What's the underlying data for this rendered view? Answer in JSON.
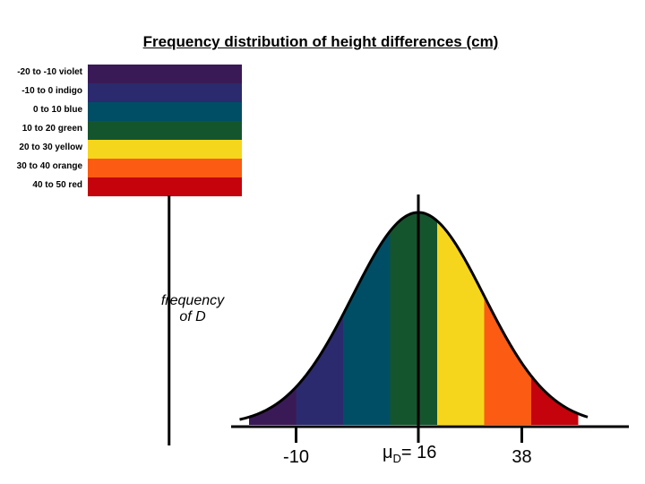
{
  "chart_data": {
    "type": "area",
    "title": "Frequency distribution of height differences (cm)",
    "ylabel_line1": "frequency",
    "ylabel_line2": "of D",
    "distribution": "normal",
    "mean": 16,
    "sd": 14,
    "xlim": [
      -38,
      70
    ],
    "bands": [
      {
        "label": "-20 to -10 violet",
        "from": -20,
        "to": -10,
        "color": "#3a1a56"
      },
      {
        "label": "-10 to 0 indigo",
        "from": -10,
        "to": 0,
        "color": "#2b2a6e"
      },
      {
        "label": "0 to 10 blue",
        "from": 0,
        "to": 10,
        "color": "#004e66"
      },
      {
        "label": "10 to 20 green",
        "from": 10,
        "to": 20,
        "color": "#15552e"
      },
      {
        "label": "20 to 30 yellow",
        "from": 20,
        "to": 30,
        "color": "#f6d61c"
      },
      {
        "label": "30 to 40 orange",
        "from": 30,
        "to": 40,
        "color": "#fb5b12"
      },
      {
        "label": "40 to 50 red",
        "from": 40,
        "to": 50,
        "color": "#c4030d"
      }
    ],
    "tick_labels": [
      {
        "value": -10,
        "text": "-10"
      },
      {
        "value": 38,
        "text": "38"
      }
    ],
    "mean_label": {
      "mu": "μ",
      "sub": "D",
      "rest": "= 16"
    }
  }
}
